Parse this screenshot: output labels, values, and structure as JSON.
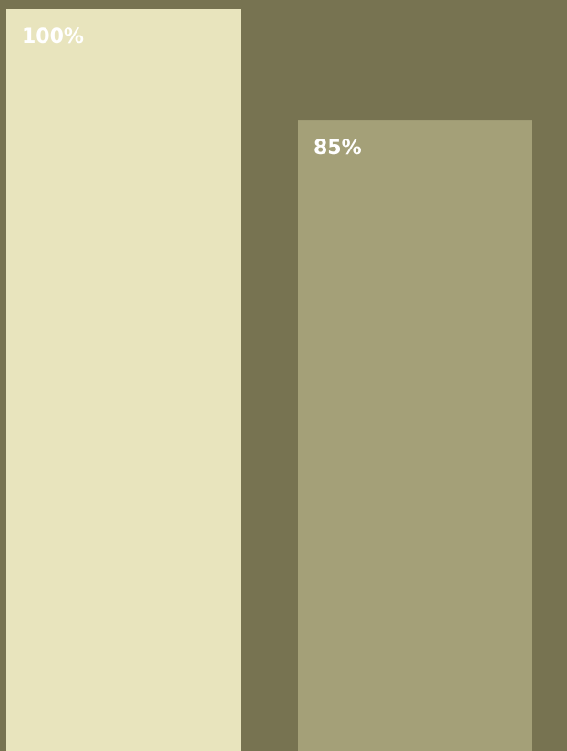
{
  "colors": {
    "background": "#777351",
    "label": "#ffffff"
  },
  "chart_data": {
    "type": "bar",
    "categories": [
      "",
      ""
    ],
    "values": [
      100,
      85
    ],
    "ylim": [
      0,
      100
    ],
    "grid": false,
    "legend": "none",
    "bars": [
      {
        "value": 100,
        "label": "100%",
        "color": "#e8e4bd"
      },
      {
        "value": 85,
        "label": "85%",
        "color": "#a4a078"
      }
    ]
  }
}
